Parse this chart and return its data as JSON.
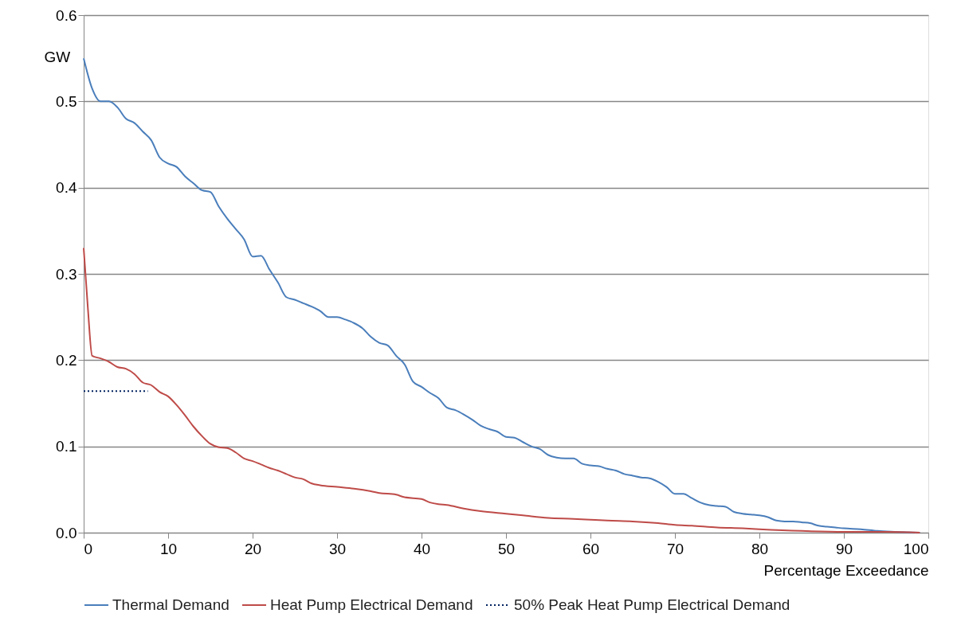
{
  "chart_data": {
    "type": "line",
    "xlabel": "Percentage Exceedance",
    "ylabel": "GW",
    "xlim": [
      0,
      100
    ],
    "xticks": [
      0,
      10,
      20,
      30,
      40,
      50,
      60,
      70,
      80,
      90,
      100
    ],
    "ylim": [
      0,
      0.6
    ],
    "yticks": [
      {
        "value": 0,
        "label": "0.0"
      },
      0.1,
      0.2,
      0.3,
      0.4,
      0.5,
      0.6
    ],
    "grid": "y",
    "legend": "bottom",
    "marker": "none",
    "series": [
      {
        "name": "Thermal Demand",
        "color": "#4a7ebb",
        "line_style": "solid",
        "x": [
          0,
          1,
          2,
          3,
          4,
          5,
          6,
          7,
          8,
          9,
          10,
          11,
          12,
          13,
          14,
          15,
          16,
          17,
          18,
          19,
          20,
          21,
          22,
          23,
          24,
          25,
          26,
          27,
          28,
          29,
          30,
          31,
          32,
          33,
          34,
          35,
          36,
          37,
          38,
          39,
          40,
          41,
          42,
          43,
          44,
          45,
          46,
          47,
          48,
          49,
          50,
          51,
          52,
          53,
          54,
          55,
          56,
          57,
          58,
          59,
          60,
          61,
          62,
          63,
          64,
          65,
          66,
          67,
          68,
          69,
          70,
          71,
          72,
          73,
          74,
          75,
          76,
          77,
          78,
          79,
          80,
          81,
          82,
          83,
          84,
          85,
          86,
          87,
          88,
          89,
          90,
          92,
          94,
          96,
          99
        ],
        "values": [
          0.55,
          0.515,
          0.5,
          0.5,
          0.493,
          0.48,
          0.475,
          0.465,
          0.455,
          0.435,
          0.428,
          0.424,
          0.413,
          0.405,
          0.397,
          0.395,
          0.378,
          0.364,
          0.352,
          0.34,
          0.32,
          0.321,
          0.305,
          0.29,
          0.273,
          0.27,
          0.266,
          0.262,
          0.257,
          0.25,
          0.25,
          0.247,
          0.243,
          0.237,
          0.227,
          0.22,
          0.217,
          0.205,
          0.195,
          0.175,
          0.169,
          0.162,
          0.156,
          0.145,
          0.142,
          0.137,
          0.131,
          0.124,
          0.12,
          0.117,
          0.111,
          0.11,
          0.105,
          0.1,
          0.097,
          0.09,
          0.087,
          0.086,
          0.086,
          0.08,
          0.078,
          0.077,
          0.074,
          0.072,
          0.068,
          0.066,
          0.064,
          0.063,
          0.059,
          0.053,
          0.045,
          0.045,
          0.04,
          0.035,
          0.032,
          0.031,
          0.03,
          0.024,
          0.022,
          0.021,
          0.02,
          0.018,
          0.014,
          0.013,
          0.013,
          0.012,
          0.011,
          0.008,
          0.007,
          0.006,
          0.005,
          0.004,
          0.002,
          0.001,
          0.0
        ]
      },
      {
        "name": "Heat Pump Electrical Demand",
        "color": "#be4b48",
        "line_style": "solid",
        "x": [
          0,
          0.5,
          1,
          2,
          3,
          4,
          5,
          6,
          7,
          8,
          9,
          10,
          11,
          12,
          13,
          14,
          15,
          16,
          17,
          18,
          19,
          20,
          21,
          22,
          23,
          24,
          25,
          26,
          27,
          28,
          30,
          32,
          34,
          35,
          37,
          38,
          40,
          41,
          42,
          43,
          45,
          47,
          50,
          52,
          55,
          58,
          60,
          62,
          65,
          68,
          70,
          72,
          75,
          78,
          80,
          85,
          90,
          95,
          99
        ],
        "values": [
          0.33,
          0.26,
          0.205,
          0.202,
          0.198,
          0.192,
          0.19,
          0.184,
          0.174,
          0.171,
          0.163,
          0.158,
          0.148,
          0.136,
          0.123,
          0.112,
          0.103,
          0.099,
          0.098,
          0.093,
          0.086,
          0.083,
          0.079,
          0.075,
          0.072,
          0.068,
          0.064,
          0.062,
          0.057,
          0.055,
          0.053,
          0.051,
          0.048,
          0.046,
          0.044,
          0.041,
          0.039,
          0.035,
          0.033,
          0.032,
          0.028,
          0.025,
          0.022,
          0.02,
          0.017,
          0.016,
          0.015,
          0.014,
          0.013,
          0.011,
          0.009,
          0.008,
          0.006,
          0.005,
          0.004,
          0.002,
          0.001,
          0.001,
          0.0
        ]
      },
      {
        "name": "50% Peak Heat Pump Electrical Demand",
        "color": "#002060",
        "line_style": "dotted",
        "x": [
          0,
          7.6
        ],
        "values": [
          0.164,
          0.164
        ]
      }
    ]
  }
}
